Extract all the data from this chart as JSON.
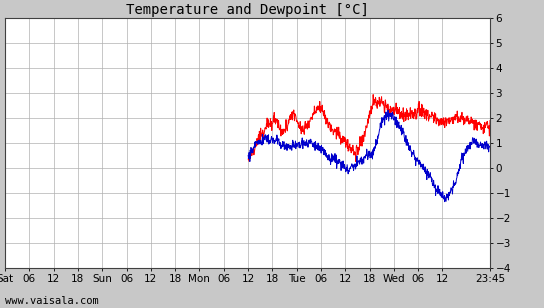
{
  "title": "Temperature and Dewpoint [°C]",
  "ylim": [
    -4,
    6
  ],
  "yticks": [
    -4,
    -3,
    -2,
    -1,
    0,
    1,
    2,
    3,
    4,
    5,
    6
  ],
  "background_color": "#c8c8c8",
  "plot_bg_color": "#ffffff",
  "grid_color": "#b0b0b0",
  "temp_color": "#ff0000",
  "dewp_color": "#0000cc",
  "watermark": "www.vaisala.com",
  "title_fontsize": 10,
  "tick_fontsize": 7.5,
  "watermark_fontsize": 7.5,
  "x_tick_labels": [
    "Sat",
    "06",
    "12",
    "18",
    "Sun",
    "06",
    "12",
    "18",
    "Mon",
    "06",
    "12",
    "18",
    "Tue",
    "06",
    "12",
    "18",
    "Wed",
    "06",
    "12",
    "23:45"
  ],
  "x_tick_positions": [
    0,
    6,
    12,
    18,
    24,
    30,
    36,
    42,
    48,
    54,
    60,
    66,
    72,
    78,
    84,
    90,
    96,
    102,
    108,
    119.75
  ],
  "x_total_hours": 119.75,
  "start_data_hour": 60.0,
  "temp_base": [
    0.6,
    1.2,
    1.8,
    2.0,
    1.6,
    2.3,
    1.5,
    2.0,
    2.5,
    1.8,
    1.5,
    1.0,
    0.6,
    1.2,
    2.5,
    2.5,
    2.2,
    2.1,
    2.0,
    2.2,
    2.2,
    2.0,
    2.0,
    2.0,
    1.8,
    1.7,
    1.6,
    1.5
  ],
  "dewp_base": [
    0.5,
    1.2,
    1.3,
    1.2,
    1.1,
    1.1,
    1.0,
    1.0,
    0.8,
    0.5,
    0.3,
    0.05,
    0.0,
    0.2,
    0.5,
    1.8,
    2.0,
    1.5,
    0.8,
    0.2,
    -0.2,
    -0.8,
    -1.3,
    -0.8,
    0.5,
    1.0,
    0.9,
    0.9
  ],
  "seed_temp": 10,
  "seed_dewp": 20,
  "noise_temp": 0.13,
  "noise_dewp": 0.1
}
